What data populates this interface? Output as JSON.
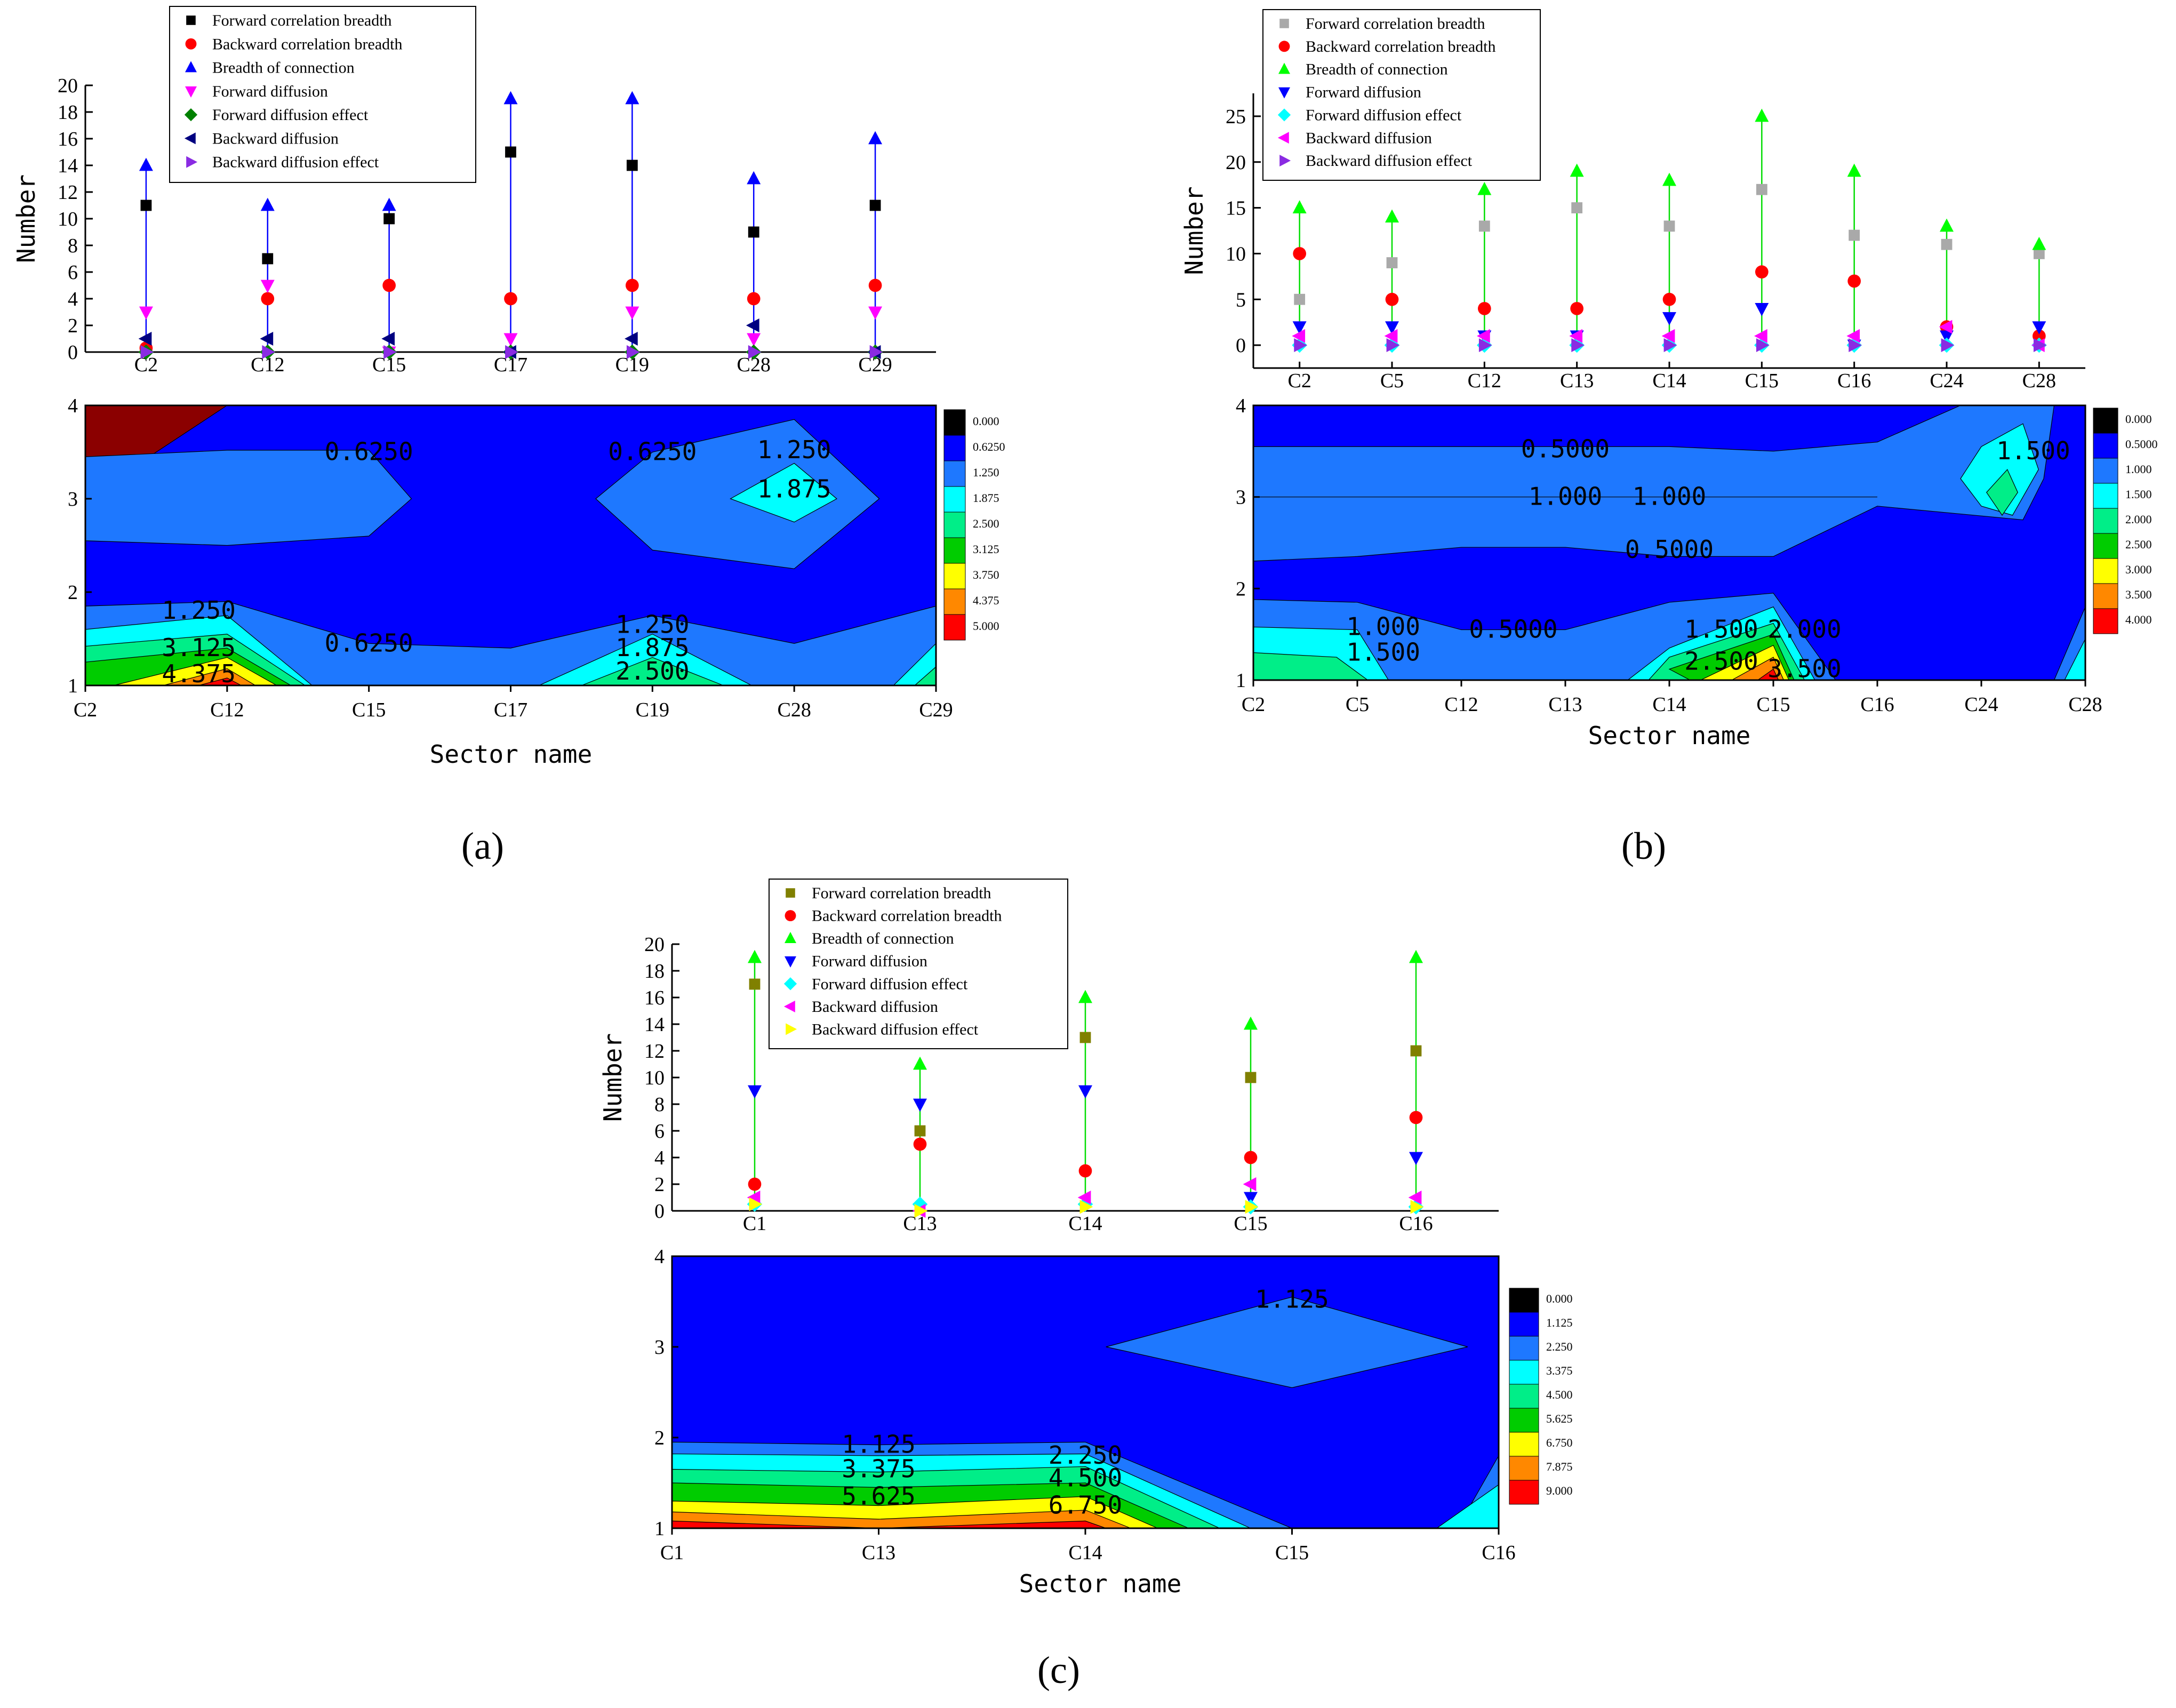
{
  "charts": [
    {
      "label": "(a)",
      "scatter": {
        "y_axis_title": "Number",
        "ylim": [
          0,
          20
        ],
        "yticks": [
          0,
          2,
          4,
          6,
          8,
          10,
          12,
          14,
          16,
          18,
          20
        ],
        "categories": [
          "C2",
          "C12",
          "C15",
          "C17",
          "C19",
          "C28",
          "C29"
        ],
        "stem_color": "#0000ff",
        "series": [
          {
            "name": "Forward correlation breadth",
            "marker": "square",
            "color": "#000000",
            "values": [
              11,
              7,
              10,
              15,
              14,
              9,
              11
            ]
          },
          {
            "name": "Backward correlation breadth",
            "marker": "circle",
            "color": "#ff0000",
            "values": [
              0.3,
              4,
              5,
              4,
              5,
              4,
              5
            ]
          },
          {
            "name": "Breadth of connection",
            "marker": "tri-up",
            "color": "#0000ff",
            "values": [
              14,
              11,
              11,
              19,
              19,
              13,
              16
            ]
          },
          {
            "name": "Forward diffusion",
            "marker": "tri-down",
            "color": "#ff00ff",
            "values": [
              3,
              5,
              0,
              1,
              3,
              1,
              3
            ]
          },
          {
            "name": "Forward diffusion effect",
            "marker": "diamond",
            "color": "#008000",
            "values": [
              0,
              0,
              0,
              0,
              0,
              0,
              0
            ]
          },
          {
            "name": "Backward diffusion",
            "marker": "tri-left",
            "color": "#000080",
            "values": [
              1,
              1,
              1,
              0,
              1,
              2,
              0
            ]
          },
          {
            "name": "Backward diffusion effect",
            "marker": "tri-right",
            "color": "#8a2be2",
            "values": [
              0,
              0,
              0,
              0,
              0,
              0,
              0
            ]
          }
        ]
      },
      "contour": {
        "x_axis_title": "Sector name",
        "x_categories": [
          "C2",
          "C12",
          "C15",
          "C17",
          "C19",
          "C28",
          "C29"
        ],
        "ylim": [
          1,
          4
        ],
        "yticks": [
          1,
          2,
          3,
          4
        ],
        "levels": [
          "0.000",
          "0.6250",
          "1.250",
          "1.875",
          "2.500",
          "3.125",
          "3.750",
          "4.375",
          "5.000"
        ],
        "level_colors": [
          "#000000",
          "#0000ff",
          "#1e78ff",
          "#00ffff",
          "#00ee88",
          "#00cc00",
          "#ffff00",
          "#ff8800",
          "#ff0000"
        ],
        "corner_color": "#8b0000",
        "labels": [
          {
            "text": "0.6250",
            "x": 2.0,
            "y": 3.5
          },
          {
            "text": "0.6250",
            "x": 4.0,
            "y": 3.5
          },
          {
            "text": "1.250",
            "x": 5.0,
            "y": 3.52
          },
          {
            "text": "1.875",
            "x": 5.0,
            "y": 3.1
          },
          {
            "text": "1.250",
            "x": 0.8,
            "y": 1.8
          },
          {
            "text": "3.125",
            "x": 0.8,
            "y": 1.4
          },
          {
            "text": "4.375",
            "x": 0.8,
            "y": 1.12
          },
          {
            "text": "0.6250",
            "x": 2.0,
            "y": 1.45
          },
          {
            "text": "1.250",
            "x": 4.0,
            "y": 1.65
          },
          {
            "text": "1.875",
            "x": 4.0,
            "y": 1.4
          },
          {
            "text": "2.500",
            "x": 4.0,
            "y": 1.15
          }
        ]
      }
    },
    {
      "label": "(b)",
      "scatter": {
        "y_axis_title": "Number",
        "ylim": [
          -2.5,
          27.5
        ],
        "yticks": [
          0,
          5,
          10,
          15,
          20,
          25
        ],
        "categories": [
          "C2",
          "C5",
          "C12",
          "C13",
          "C14",
          "C15",
          "C16",
          "C24",
          "C28"
        ],
        "stem_color": "#00dd00",
        "series": [
          {
            "name": "Forward correlation breadth",
            "marker": "square",
            "color": "#a9a9a9",
            "values": [
              5,
              9,
              13,
              15,
              13,
              17,
              12,
              11,
              10
            ]
          },
          {
            "name": "Backward correlation breadth",
            "marker": "circle",
            "color": "#ff0000",
            "values": [
              10,
              5,
              4,
              4,
              5,
              8,
              7,
              2,
              1
            ]
          },
          {
            "name": "Breadth of connection",
            "marker": "tri-up",
            "color": "#00ff00",
            "values": [
              15,
              14,
              17,
              19,
              18,
              25,
              19,
              13,
              11
            ]
          },
          {
            "name": "Forward diffusion",
            "marker": "tri-down",
            "color": "#0000ff",
            "values": [
              2,
              2,
              1,
              1,
              3,
              4,
              0,
              1,
              2
            ]
          },
          {
            "name": "Forward diffusion effect",
            "marker": "diamond",
            "color": "#00ffff",
            "values": [
              0,
              0,
              0,
              0,
              0,
              0,
              0,
              0,
              0
            ]
          },
          {
            "name": "Backward diffusion",
            "marker": "tri-left",
            "color": "#ff00ff",
            "values": [
              1,
              1,
              1,
              1,
              1,
              1,
              1,
              2,
              0
            ]
          },
          {
            "name": "Backward diffusion effect",
            "marker": "tri-right",
            "color": "#8a2be2",
            "values": [
              0,
              0,
              0,
              0,
              0,
              0,
              0,
              0,
              0
            ]
          }
        ]
      },
      "contour": {
        "x_axis_title": "Sector name",
        "x_categories": [
          "C2",
          "C5",
          "C12",
          "C13",
          "C14",
          "C15",
          "C16",
          "C24",
          "C28"
        ],
        "ylim": [
          1,
          4
        ],
        "yticks": [
          1,
          2,
          3,
          4
        ],
        "levels": [
          "0.000",
          "0.5000",
          "1.000",
          "1.500",
          "2.000",
          "2.500",
          "3.000",
          "3.500",
          "4.000"
        ],
        "level_colors": [
          "#000000",
          "#0000ff",
          "#1e78ff",
          "#00ffff",
          "#00ee88",
          "#00cc00",
          "#ffff00",
          "#ff8800",
          "#ff0000"
        ],
        "labels": [
          {
            "text": "0.5000",
            "x": 3.0,
            "y": 3.52
          },
          {
            "text": "1.000",
            "x": 3.0,
            "y": 3.0
          },
          {
            "text": "1.000",
            "x": 4.0,
            "y": 3.0
          },
          {
            "text": "0.5000",
            "x": 4.0,
            "y": 2.42
          },
          {
            "text": "1.500",
            "x": 7.5,
            "y": 3.5
          },
          {
            "text": "1.000",
            "x": 1.25,
            "y": 1.58
          },
          {
            "text": "1.500",
            "x": 1.25,
            "y": 1.3
          },
          {
            "text": "0.5000",
            "x": 2.5,
            "y": 1.55
          },
          {
            "text": "1.500",
            "x": 4.5,
            "y": 1.55
          },
          {
            "text": "2.000",
            "x": 5.3,
            "y": 1.55
          },
          {
            "text": "2.500",
            "x": 4.5,
            "y": 1.2
          },
          {
            "text": "3.500",
            "x": 5.3,
            "y": 1.12
          }
        ]
      }
    },
    {
      "label": "(c)",
      "scatter": {
        "y_axis_title": "Number",
        "ylim": [
          0,
          20
        ],
        "yticks": [
          0,
          2,
          4,
          6,
          8,
          10,
          12,
          14,
          16,
          18,
          20
        ],
        "categories": [
          "C1",
          "C13",
          "C14",
          "C15",
          "C16"
        ],
        "stem_color": "#00dd00",
        "series": [
          {
            "name": "Forward correlation breadth",
            "marker": "square",
            "color": "#808000",
            "values": [
              17,
              6,
              13,
              10,
              12
            ]
          },
          {
            "name": "Backward correlation breadth",
            "marker": "circle",
            "color": "#ff0000",
            "values": [
              2,
              5,
              3,
              4,
              7
            ]
          },
          {
            "name": "Breadth of connection",
            "marker": "tri-up",
            "color": "#00ff00",
            "values": [
              19,
              11,
              16,
              14,
              19
            ]
          },
          {
            "name": "Forward diffusion",
            "marker": "tri-down",
            "color": "#0000ff",
            "values": [
              9,
              8,
              9,
              1,
              4
            ]
          },
          {
            "name": "Forward diffusion effect",
            "marker": "diamond",
            "color": "#00ffff",
            "values": [
              0.5,
              0.5,
              0.5,
              0.3,
              0.3
            ]
          },
          {
            "name": "Backward diffusion",
            "marker": "tri-left",
            "color": "#ff00ff",
            "values": [
              1,
              0,
              1,
              2,
              1
            ]
          },
          {
            "name": "Backward diffusion effect",
            "marker": "tri-right",
            "color": "#ffff00",
            "values": [
              0.5,
              0,
              0.3,
              0.3,
              0.3
            ]
          }
        ]
      },
      "contour": {
        "x_axis_title": "Sector name",
        "x_categories": [
          "C1",
          "C13",
          "C14",
          "C15",
          "C16"
        ],
        "ylim": [
          1,
          4
        ],
        "yticks": [
          1,
          2,
          3,
          4
        ],
        "levels": [
          "0.000",
          "1.125",
          "2.250",
          "3.375",
          "4.500",
          "5.625",
          "6.750",
          "7.875",
          "9.000"
        ],
        "level_colors": [
          "#000000",
          "#0000ff",
          "#1e78ff",
          "#00ffff",
          "#00ee88",
          "#00cc00",
          "#ffff00",
          "#ff8800",
          "#ff0000"
        ],
        "labels": [
          {
            "text": "1.125",
            "x": 3.0,
            "y": 3.52
          },
          {
            "text": "1.125",
            "x": 1.0,
            "y": 1.92
          },
          {
            "text": "3.375",
            "x": 1.0,
            "y": 1.65
          },
          {
            "text": "5.625",
            "x": 1.0,
            "y": 1.35
          },
          {
            "text": "2.250",
            "x": 2.0,
            "y": 1.8
          },
          {
            "text": "4.500",
            "x": 2.0,
            "y": 1.55
          },
          {
            "text": "6.750",
            "x": 2.0,
            "y": 1.25
          }
        ]
      }
    }
  ]
}
